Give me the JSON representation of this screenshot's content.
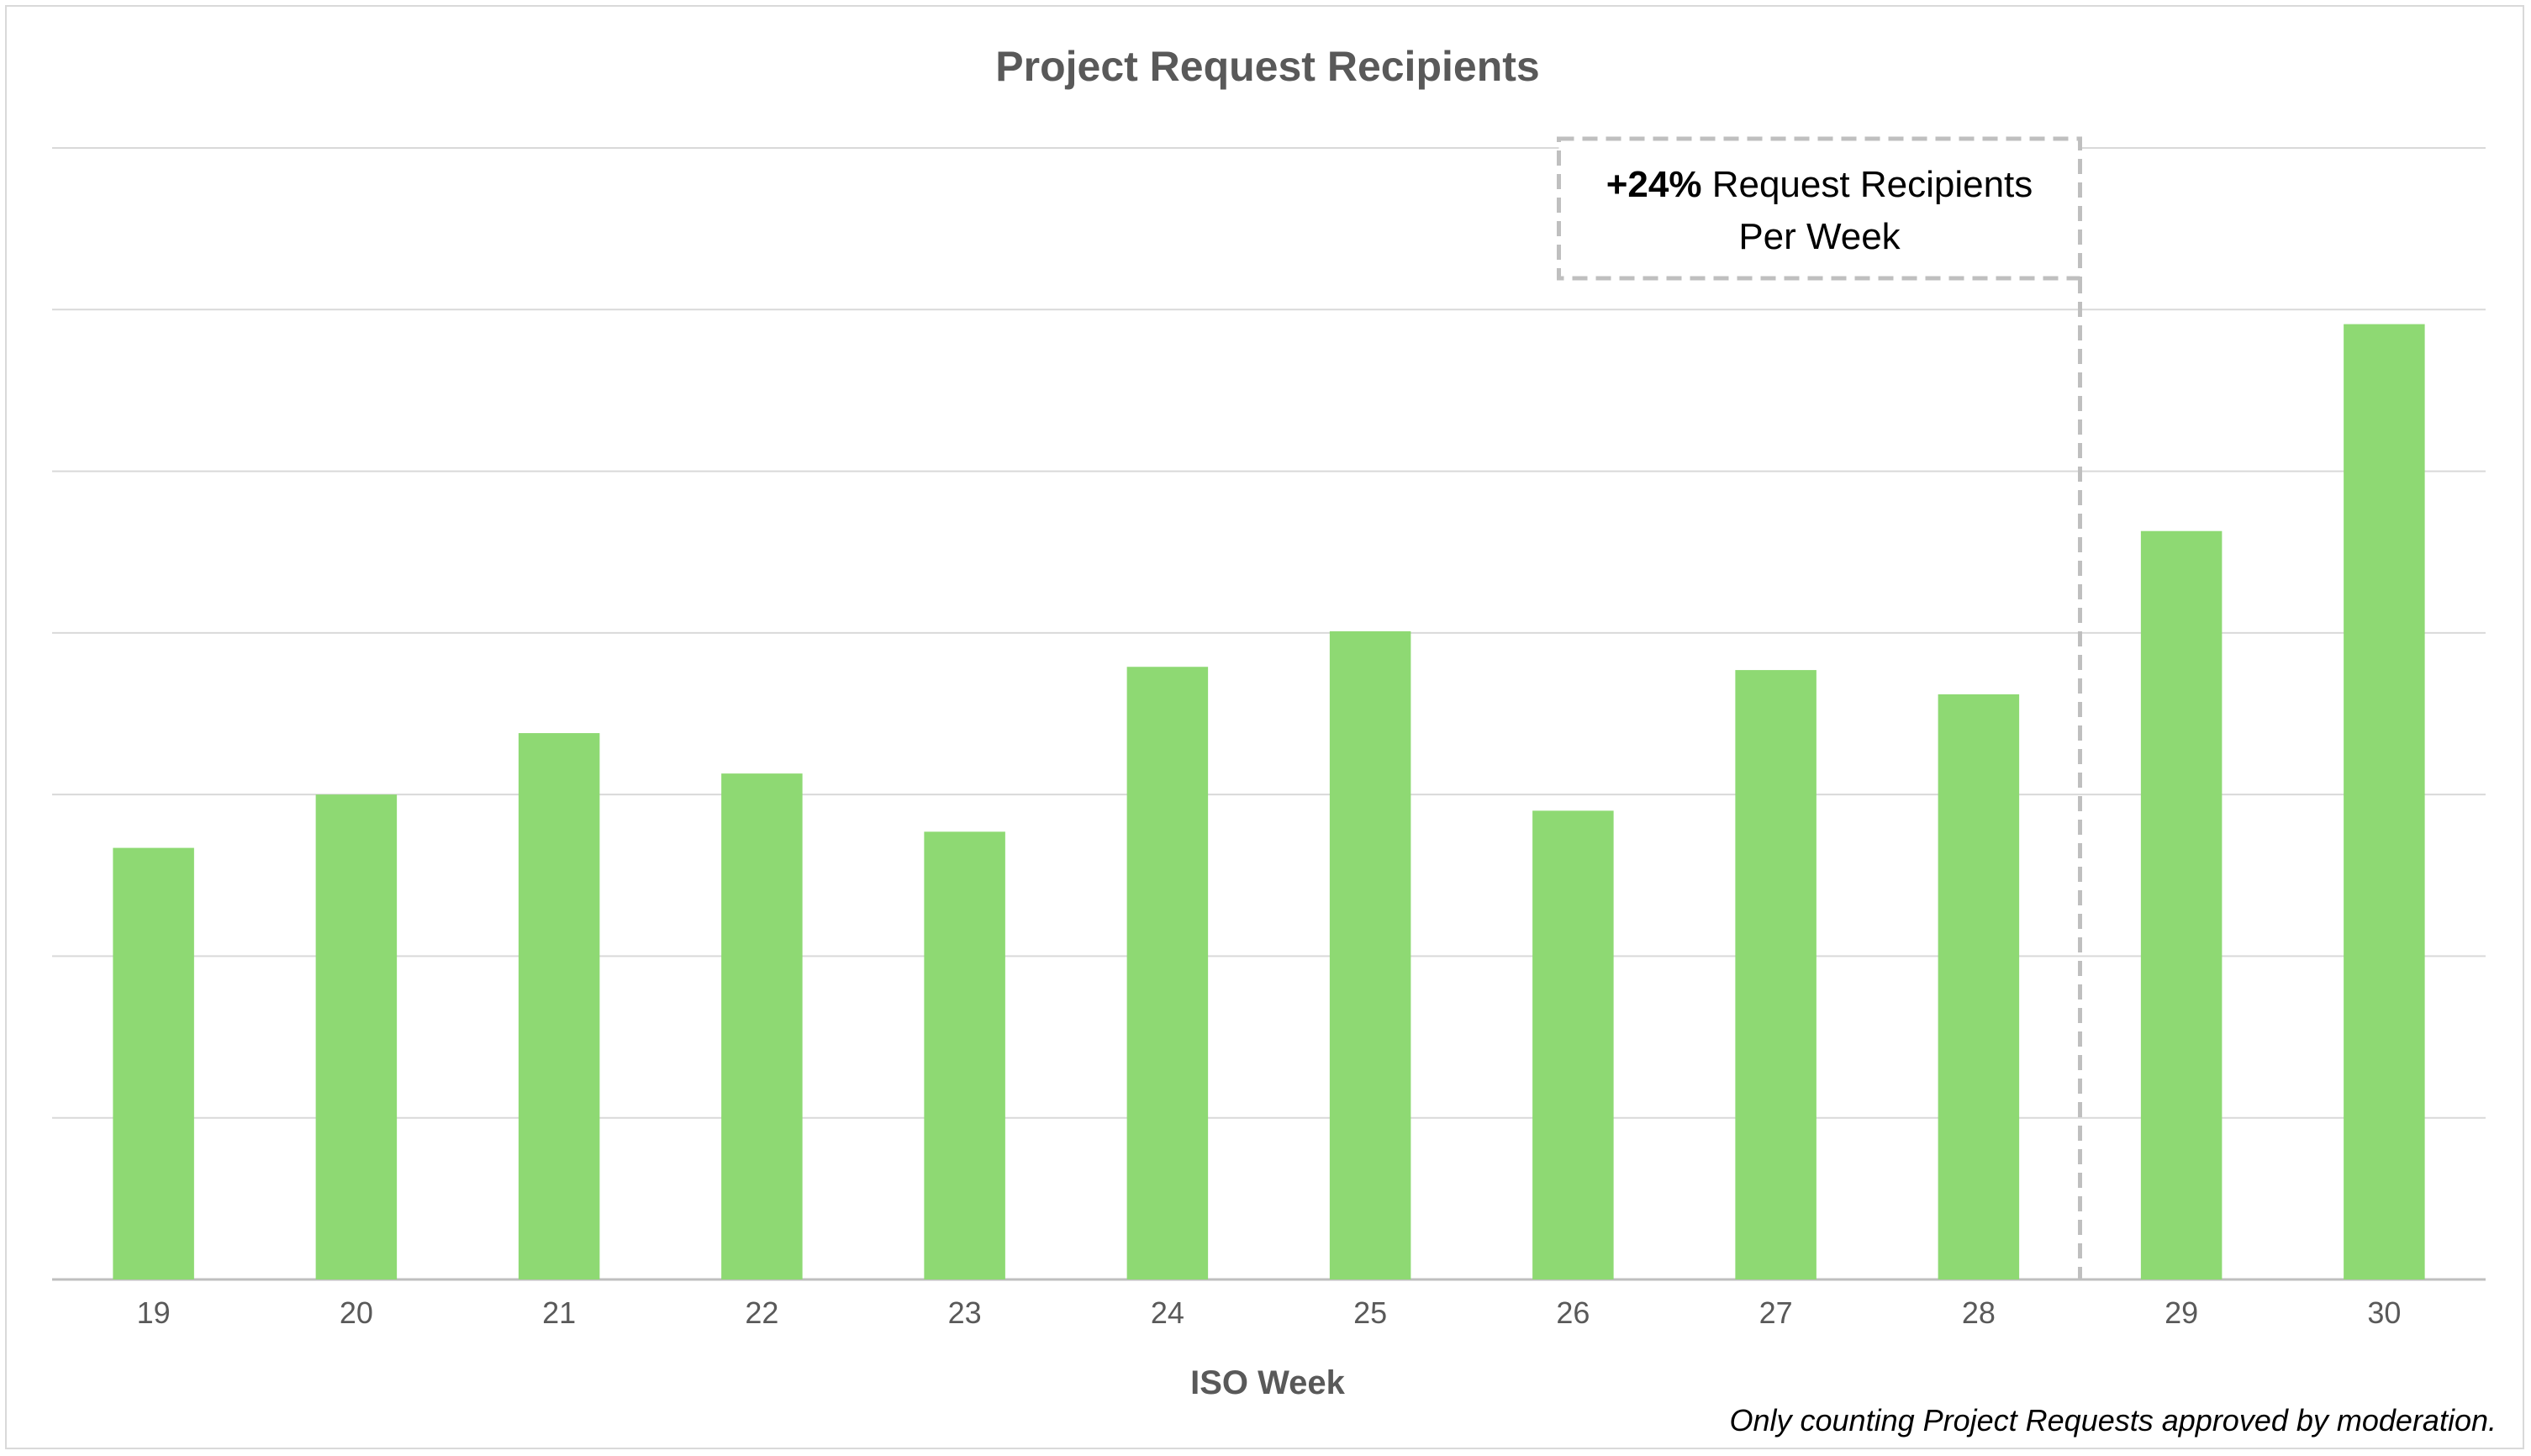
{
  "chart_data": {
    "type": "bar",
    "title": "Project Request Recipients",
    "xlabel": "ISO Week",
    "ylabel": "",
    "categories": [
      "19",
      "20",
      "21",
      "22",
      "23",
      "24",
      "25",
      "26",
      "27",
      "28",
      "29",
      "30"
    ],
    "values": [
      2.67,
      3.0,
      3.38,
      3.13,
      2.77,
      3.79,
      4.01,
      2.9,
      3.77,
      3.62,
      4.63,
      5.91
    ],
    "ylim": [
      0,
      7
    ],
    "y_gridlines": 7,
    "grid": true,
    "y_tick_labels_shown": false,
    "legend": "none",
    "bar_color": "#8ed973",
    "annotations": {
      "callout_bold": "+24%",
      "callout_text_line1": "Request Recipients",
      "callout_text_line2": "Per Week",
      "divider_after_category": "28",
      "divider_style": "dashed",
      "divider_color": "#bfbfbf",
      "footnote": "Only counting Project Requests approved by moderation."
    }
  }
}
